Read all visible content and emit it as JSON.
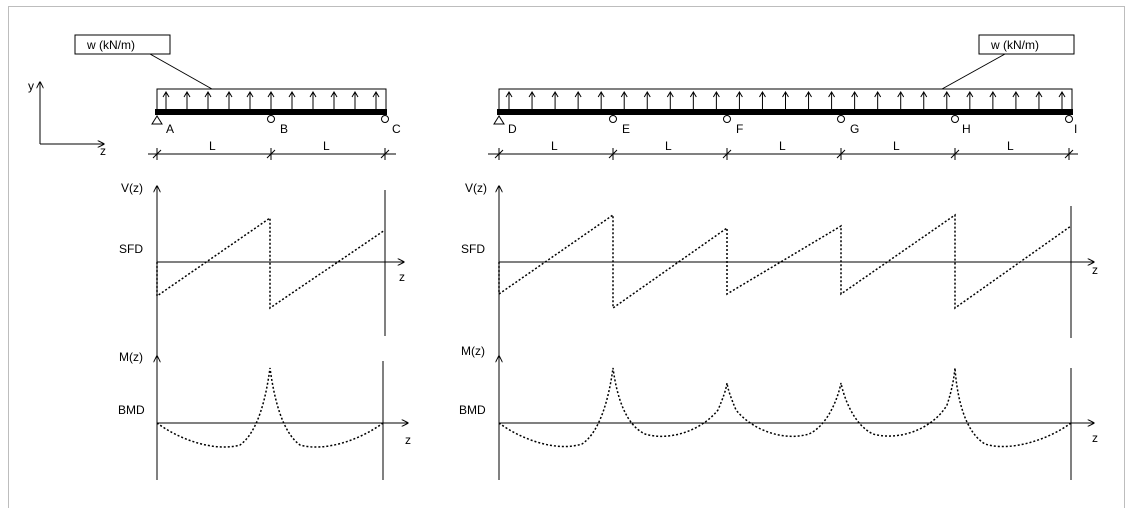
{
  "coordinate_axes": {
    "y_label": "y",
    "z_label": "z"
  },
  "beam_left": {
    "load_label": "w (kN/m)",
    "support_labels": [
      "A",
      "B",
      "C"
    ],
    "span_labels": [
      "L",
      "L"
    ]
  },
  "beam_right": {
    "load_label": "w (kN/m)",
    "support_labels": [
      "D",
      "E",
      "F",
      "G",
      "H",
      "I"
    ],
    "span_labels": [
      "L",
      "L",
      "L",
      "L",
      "L"
    ]
  },
  "sfd": {
    "axis_label": "V(z)",
    "name": "SFD",
    "z_label": "z"
  },
  "bmd": {
    "axis_label": "M(z)",
    "name": "BMD",
    "z_label": "z"
  },
  "colors": {
    "line": "#000000",
    "frame": "#bdbdbd"
  }
}
